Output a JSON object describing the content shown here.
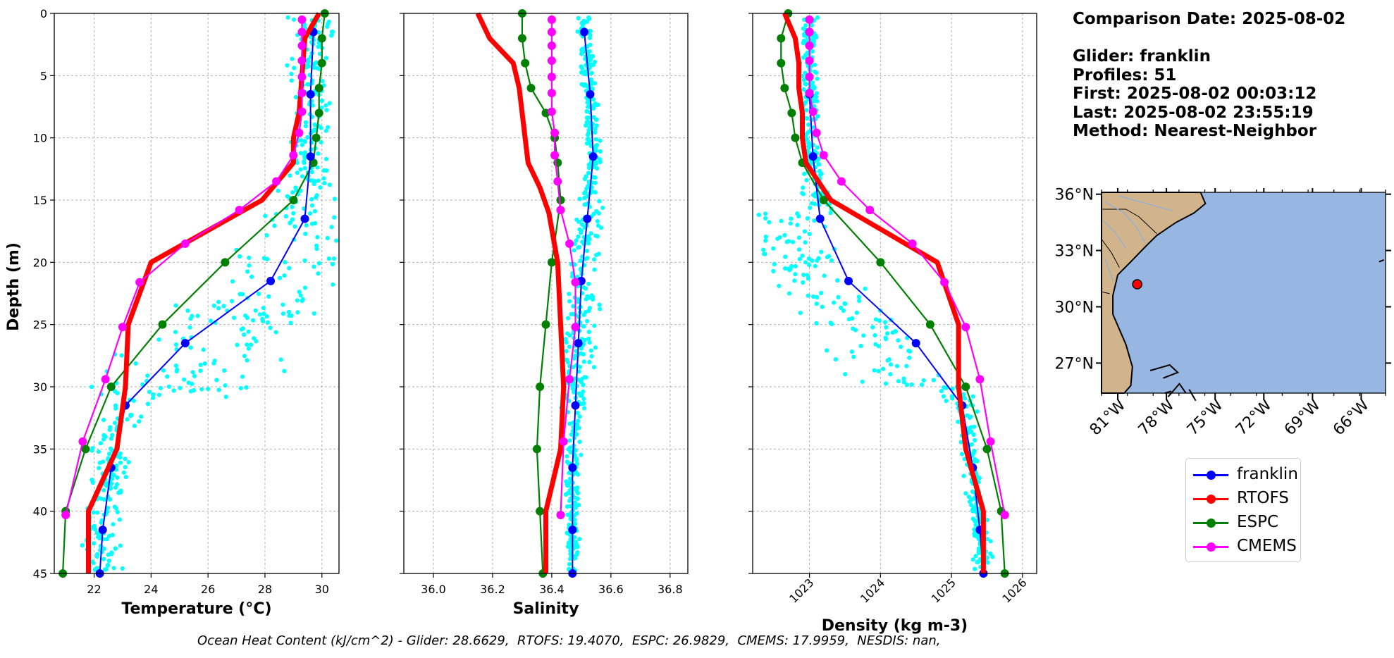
{
  "info": {
    "comparison_date": "Comparison Date: 2025-08-02",
    "glider": "Glider: franklin",
    "profiles": "Profiles: 51",
    "first": "First: 2025-08-02 00:03:12",
    "last": "Last: 2025-08-02 23:55:19",
    "method": "Method: Nearest-Neighbor"
  },
  "ohc_text": "Ocean Heat Content (kJ/cm^2) - Glider: 28.6629,  RTOFS: 19.4070,  ESPC: 26.9829,  CMEMS: 17.9959,  NESDIS: nan,",
  "colors": {
    "franklin": "#0000ff",
    "RTOFS": "#ff0000",
    "ESPC": "#008000",
    "CMEMS": "#ff00ff",
    "glider_scatter": "#00ffff",
    "land": "#d2b48c",
    "ocean": "#97b6e1"
  },
  "legend": [
    {
      "name": "franklin",
      "color": "#0000ff"
    },
    {
      "name": "RTOFS",
      "color": "#ff0000"
    },
    {
      "name": "ESPC",
      "color": "#008000"
    },
    {
      "name": "CMEMS",
      "color": "#ff00ff"
    }
  ],
  "map": {
    "lat_labels": [
      "36°N",
      "33°N",
      "30°N",
      "27°N"
    ],
    "lat_values": [
      36,
      33,
      30,
      27
    ],
    "lon_labels": [
      "81°W",
      "78°W",
      "75°W",
      "72°W",
      "69°W",
      "66°W"
    ],
    "lon_values": [
      -81,
      -78,
      -75,
      -72,
      -69,
      -66
    ],
    "lon_range": [
      -82.0,
      -64.5
    ],
    "lat_range": [
      25.4,
      36.1
    ],
    "glider_location": {
      "lon": -79.8,
      "lat": 31.2
    }
  },
  "chart_data": [
    {
      "type": "line",
      "name": "temperature",
      "xlabel": "Temperature (°C)",
      "ylabel": "Depth (m)",
      "xlim": [
        20.6,
        30.6
      ],
      "ylim": [
        45,
        0
      ],
      "xticks": [
        22,
        24,
        26,
        28,
        30
      ],
      "yticks": [
        0,
        5,
        10,
        15,
        20,
        25,
        30,
        35,
        40,
        45
      ],
      "series": [
        {
          "name": "franklin",
          "depth": [
            1.5,
            6.5,
            11.5,
            16.5,
            21.5,
            26.5,
            31.5,
            36.5,
            41.5,
            45
          ],
          "values": [
            29.7,
            29.6,
            29.6,
            29.4,
            28.2,
            25.2,
            23.1,
            22.6,
            22.3,
            22.2
          ]
        },
        {
          "name": "RTOFS",
          "depth": [
            0,
            2,
            5,
            8,
            10,
            12,
            15,
            20,
            25,
            30,
            35,
            40,
            45
          ],
          "values": [
            29.9,
            29.4,
            29.3,
            29.2,
            29.0,
            29.0,
            27.9,
            24.0,
            23.2,
            23.1,
            22.8,
            21.8,
            21.8
          ]
        },
        {
          "name": "ESPC",
          "depth": [
            0,
            2,
            4,
            6,
            8,
            10,
            12,
            15,
            20,
            25,
            30,
            35,
            40,
            45
          ],
          "values": [
            30.1,
            30.0,
            30.0,
            29.9,
            29.9,
            29.8,
            29.7,
            29.0,
            26.6,
            24.4,
            22.6,
            21.7,
            21.0,
            20.9
          ]
        },
        {
          "name": "CMEMS",
          "depth": [
            0.5,
            1.5,
            2.6,
            3.8,
            5.1,
            6.4,
            7.9,
            9.6,
            11.4,
            13.5,
            15.8,
            18.5,
            21.6,
            25.2,
            29.4,
            34.4,
            40.3
          ],
          "values": [
            29.3,
            29.3,
            29.3,
            29.3,
            29.3,
            29.3,
            29.3,
            29.2,
            29.0,
            28.4,
            27.1,
            25.2,
            23.6,
            23.0,
            22.4,
            21.6,
            21.0
          ]
        }
      ]
    },
    {
      "type": "line",
      "name": "salinity",
      "xlabel": "Salinity",
      "xlim": [
        35.9,
        36.86
      ],
      "ylim": [
        45,
        0
      ],
      "xticks": [
        36.0,
        36.2,
        36.4,
        36.6,
        36.8
      ],
      "series": [
        {
          "name": "franklin",
          "depth": [
            1.5,
            6.5,
            11.5,
            16.5,
            21.5,
            26.5,
            31.5,
            36.5,
            41.5,
            45
          ],
          "values": [
            36.51,
            36.53,
            36.54,
            36.52,
            36.5,
            36.49,
            36.48,
            36.47,
            36.47,
            36.47
          ]
        },
        {
          "name": "RTOFS",
          "depth": [
            0,
            1,
            2,
            4,
            6,
            8,
            10,
            12,
            14,
            16,
            20,
            25,
            30,
            35,
            40,
            45
          ],
          "values": [
            36.15,
            36.17,
            36.19,
            36.27,
            36.29,
            36.3,
            36.31,
            36.32,
            36.36,
            36.39,
            36.42,
            36.43,
            36.44,
            36.43,
            36.38,
            36.38
          ]
        },
        {
          "name": "ESPC",
          "depth": [
            0,
            2,
            4,
            6,
            8,
            10,
            12,
            15,
            20,
            25,
            30,
            35,
            40,
            45
          ],
          "values": [
            36.3,
            36.3,
            36.31,
            36.33,
            36.38,
            36.41,
            36.42,
            36.43,
            36.4,
            36.38,
            36.36,
            36.35,
            36.36,
            36.37
          ]
        },
        {
          "name": "CMEMS",
          "depth": [
            0.5,
            1.5,
            2.6,
            3.8,
            5.1,
            6.4,
            7.9,
            9.6,
            11.4,
            13.5,
            15.8,
            18.5,
            21.6,
            25.2,
            29.4,
            34.4,
            40.3
          ],
          "values": [
            36.4,
            36.4,
            36.4,
            36.4,
            36.4,
            36.4,
            36.4,
            36.41,
            36.41,
            36.42,
            36.43,
            36.46,
            36.48,
            36.48,
            36.46,
            36.44,
            36.43
          ]
        }
      ]
    },
    {
      "type": "line",
      "name": "density",
      "xlabel": "Density (kg m-3)",
      "xlim": [
        1022.2,
        1026.2
      ],
      "ylim": [
        45,
        0
      ],
      "xticks": [
        1023,
        1024,
        1025,
        1026
      ],
      "series": [
        {
          "name": "franklin",
          "depth": [
            1.5,
            6.5,
            11.5,
            16.5,
            21.5,
            26.5,
            31.5,
            36.5,
            41.5,
            45
          ],
          "values": [
            1023.0,
            1023.0,
            1023.05,
            1023.15,
            1023.55,
            1024.5,
            1025.15,
            1025.3,
            1025.4,
            1025.45
          ]
        },
        {
          "name": "RTOFS",
          "depth": [
            0,
            2,
            4,
            6,
            8,
            10,
            12,
            15,
            20,
            25,
            30,
            35,
            40,
            45
          ],
          "values": [
            1022.65,
            1022.8,
            1022.85,
            1022.85,
            1022.9,
            1022.9,
            1022.95,
            1023.3,
            1024.8,
            1025.1,
            1025.1,
            1025.2,
            1025.45,
            1025.45
          ]
        },
        {
          "name": "ESPC",
          "depth": [
            0,
            2,
            4,
            6,
            8,
            10,
            12,
            15,
            20,
            25,
            30,
            35,
            40,
            45
          ],
          "values": [
            1022.7,
            1022.6,
            1022.6,
            1022.65,
            1022.75,
            1022.8,
            1022.9,
            1023.2,
            1024.0,
            1024.7,
            1025.2,
            1025.5,
            1025.7,
            1025.75
          ]
        },
        {
          "name": "CMEMS",
          "depth": [
            0.5,
            1.5,
            2.6,
            3.8,
            5.1,
            6.4,
            7.9,
            9.6,
            11.4,
            13.5,
            15.8,
            18.5,
            21.6,
            25.2,
            29.4,
            34.4,
            40.3
          ],
          "values": [
            1023.0,
            1023.0,
            1023.0,
            1023.0,
            1023.0,
            1023.0,
            1023.05,
            1023.1,
            1023.2,
            1023.45,
            1023.85,
            1024.45,
            1024.9,
            1025.2,
            1025.4,
            1025.55,
            1025.75
          ]
        }
      ]
    }
  ]
}
